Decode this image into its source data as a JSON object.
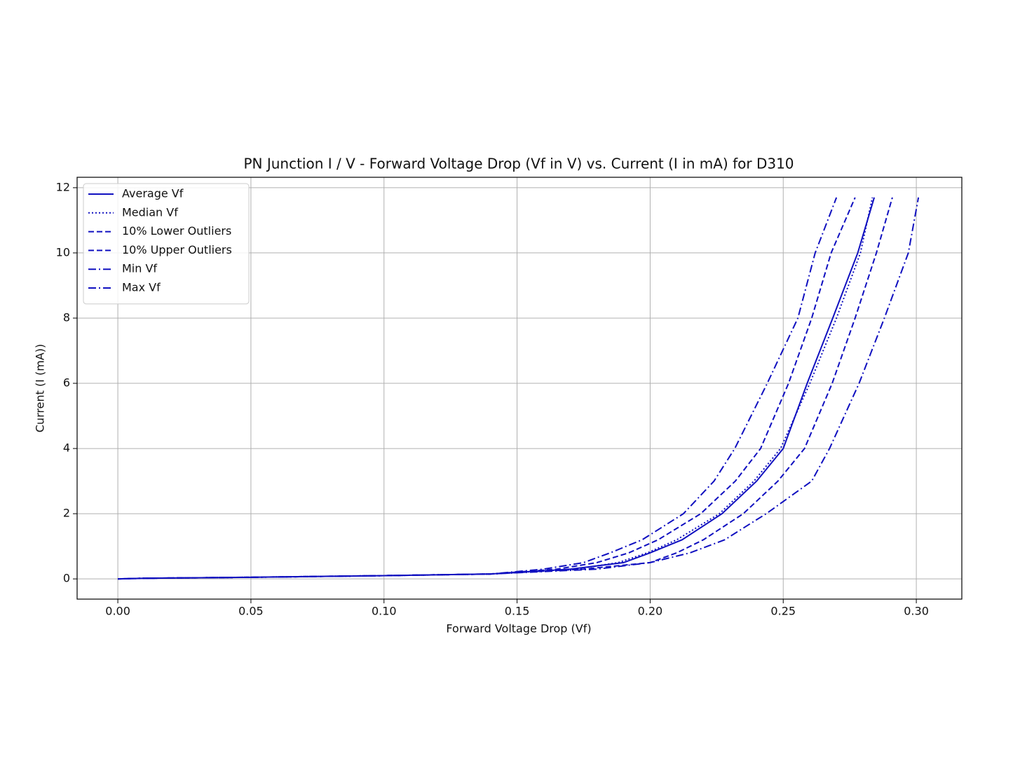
{
  "chart_data": {
    "type": "line",
    "title": "PN Junction I / V - Forward Voltage Drop (Vf in V) vs. Current (I in mA) for D310",
    "x_label": "Forward Voltage Drop (Vf)",
    "y_label": "Current (I (mA))",
    "xlim": [
      -0.0153,
      0.3171
    ],
    "ylim": [
      -0.62,
      12.32
    ],
    "xticks": [
      {
        "value": 0,
        "label": "0.00"
      },
      {
        "value": 0.05,
        "label": "0.05"
      },
      {
        "value": 0.1,
        "label": "0.10"
      },
      {
        "value": 0.15,
        "label": "0.15"
      },
      {
        "value": 0.2,
        "label": "0.20"
      },
      {
        "value": 0.25,
        "label": "0.25"
      },
      {
        "value": 0.3,
        "label": "0.30"
      }
    ],
    "yticks": [
      0,
      2,
      4,
      6,
      8,
      10,
      12
    ],
    "grid": true,
    "legend": "upper left",
    "series": [
      {
        "name": "Average Vf",
        "color": "#1010c0",
        "dash": "solid",
        "x": [
          0,
          0.01,
          0.05,
          0.1,
          0.14,
          0.17,
          0.19,
          0.2,
          0.212,
          0.227,
          0.24,
          0.25,
          0.259,
          0.2686,
          0.278,
          0.2842
        ],
        "values": [
          0,
          0.02,
          0.05,
          0.1,
          0.15,
          0.3,
          0.5,
          0.8,
          1.2,
          2,
          3,
          4,
          6,
          8,
          10,
          11.7
        ]
      },
      {
        "name": "Median Vf",
        "color": "#1010c0",
        "dash": "dotted",
        "x": [
          0,
          0.01,
          0.05,
          0.1,
          0.14,
          0.172,
          0.188,
          0.199,
          0.21,
          0.226,
          0.239,
          0.249,
          0.26,
          0.27,
          0.279,
          0.2835
        ],
        "values": [
          0,
          0.02,
          0.05,
          0.1,
          0.15,
          0.3,
          0.5,
          0.8,
          1.2,
          2,
          3,
          4,
          6,
          8,
          10,
          11.7
        ]
      },
      {
        "name": "10% Lower Outliers",
        "color": "#1010c0",
        "dash": "dashed",
        "x": [
          0,
          0.01,
          0.05,
          0.1,
          0.14,
          0.165,
          0.18,
          0.192,
          0.203,
          0.219,
          0.232,
          0.2415,
          0.252,
          0.2607,
          0.268,
          0.277
        ],
        "values": [
          0,
          0.02,
          0.05,
          0.1,
          0.15,
          0.3,
          0.5,
          0.8,
          1.2,
          2,
          3,
          4,
          6,
          8,
          10,
          11.7
        ]
      },
      {
        "name": "10% Upper Outliers",
        "color": "#1010c0",
        "dash": "dashed",
        "x": [
          0,
          0.01,
          0.05,
          0.1,
          0.14,
          0.175,
          0.2,
          0.21,
          0.22,
          0.235,
          0.248,
          0.258,
          0.2684,
          0.277,
          0.285,
          0.291
        ],
        "values": [
          0,
          0.02,
          0.05,
          0.1,
          0.15,
          0.3,
          0.5,
          0.8,
          1.2,
          2,
          3,
          4,
          6,
          8,
          10,
          11.7
        ]
      },
      {
        "name": "Min Vf",
        "color": "#1010c0",
        "dash": "dashdot",
        "x": [
          0,
          0.01,
          0.05,
          0.1,
          0.14,
          0.16,
          0.175,
          0.185,
          0.197,
          0.2125,
          0.224,
          0.2318,
          0.244,
          0.2555,
          0.262,
          0.27
        ],
        "values": [
          0,
          0.02,
          0.05,
          0.1,
          0.15,
          0.3,
          0.5,
          0.8,
          1.2,
          2,
          3,
          4,
          6,
          8,
          10,
          11.7
        ]
      },
      {
        "name": "Max Vf",
        "color": "#1010c0",
        "dash": "dashdot",
        "x": [
          0,
          0.01,
          0.05,
          0.1,
          0.14,
          0.18,
          0.2,
          0.215,
          0.228,
          0.2436,
          0.2607,
          0.2674,
          0.2785,
          0.288,
          0.297,
          0.3008
        ],
        "values": [
          0,
          0.02,
          0.05,
          0.1,
          0.15,
          0.3,
          0.5,
          0.8,
          1.2,
          2,
          3,
          4,
          6,
          8,
          10,
          11.7
        ]
      }
    ]
  }
}
